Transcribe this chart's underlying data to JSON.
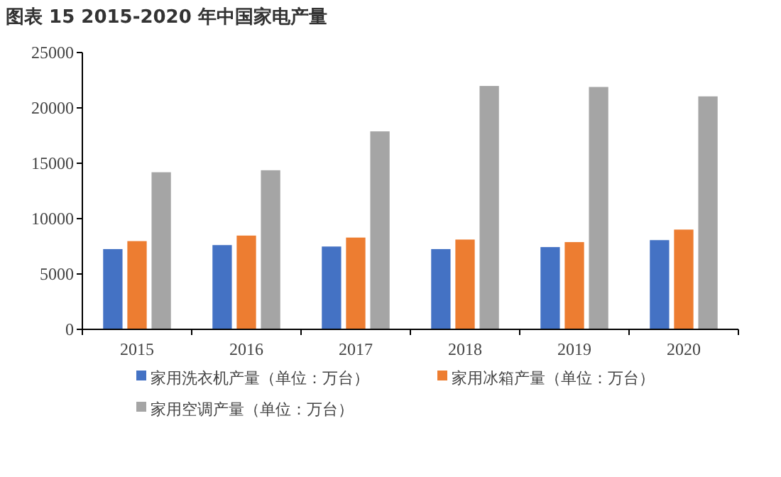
{
  "chart_data": {
    "type": "bar",
    "title": "图表 15 2015-2020 年中国家电产量",
    "categories": [
      "2015",
      "2016",
      "2017",
      "2018",
      "2019",
      "2020"
    ],
    "series": [
      {
        "name": "家用洗衣机产量（单位：万台）",
        "color": "#4472c4",
        "values": [
          7250,
          7610,
          7480,
          7250,
          7430,
          8060
        ]
      },
      {
        "name": "家用冰箱产量（单位：万台）",
        "color": "#ed7d31",
        "values": [
          7970,
          8470,
          8290,
          8110,
          7880,
          9010
        ]
      },
      {
        "name": "家用空调产量（单位：万台）",
        "color": "#a5a5a5",
        "values": [
          14190,
          14370,
          17880,
          21980,
          21890,
          21040
        ]
      }
    ],
    "ylim": [
      0,
      25000
    ],
    "yticks": [
      0,
      5000,
      10000,
      15000,
      20000,
      25000
    ],
    "grid": false,
    "legend": "bottom"
  }
}
